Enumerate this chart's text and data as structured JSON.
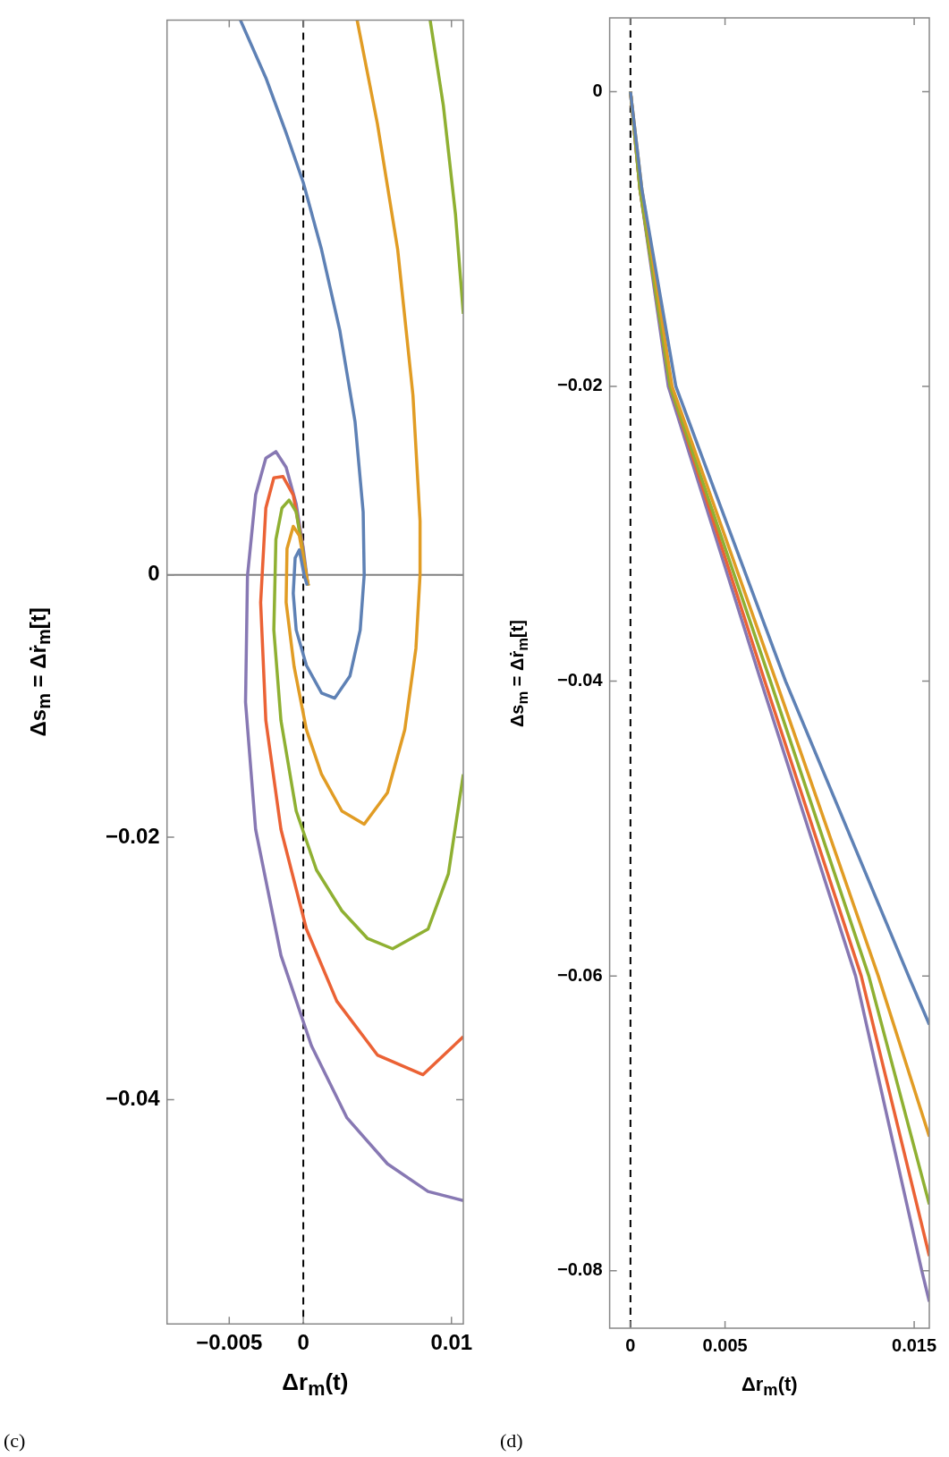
{
  "chart_data": [
    {
      "type": "line",
      "xlabel": "Δr$_{m}$(t)",
      "ylabel": "Δs$_{m}$ = Δṙ$_{m}$[t]",
      "annotations": [
        "(c)"
      ],
      "legend": false,
      "grid": false,
      "xlim": [
        -0.0092,
        0.0108
      ],
      "xticks": [
        {
          "value": -0.005,
          "label": "−0.005"
        },
        0,
        0.01
      ],
      "ylim": [
        -0.0571,
        0.0423
      ],
      "yticks": [
        {
          "value": -0.04,
          "label": "−0.04"
        },
        {
          "value": -0.02,
          "label": "−0.02"
        },
        0
      ],
      "ref_lines": [
        {
          "axis": "x",
          "value": 0,
          "color": "#000000",
          "line_style": "dashed"
        },
        {
          "axis": "y",
          "value": 0,
          "color": "#808080",
          "line_style": "solid"
        }
      ],
      "series": [
        {
          "color": "#5e81b5",
          "x": [
            -0.00425,
            -0.00253,
            -0.00116,
            0,
            0.00123,
            0.00247,
            0.00349,
            0.00404,
            0.00411,
            0.00384,
            0.00315,
            0.00212,
            0.00123,
            0.00021,
            -0.00048,
            -0.00068,
            -0.00055,
            -0.00027,
            7e-05,
            0.00027
          ],
          "values": [
            0.0423,
            0.0379,
            0.0337,
            0.0299,
            0.0248,
            0.0186,
            0.0117,
            0.0048,
            0,
            -0.0042,
            -0.0077,
            -0.0094,
            -0.009,
            -0.0069,
            -0.0042,
            -0.0014,
            0.0013,
            0.0019,
            -0.0001,
            -0.0008
          ]
        },
        {
          "color": "#e19c24",
          "x": [
            0.00363,
            0.005,
            0.00637,
            0.0074,
            0.00788,
            0.00788,
            0.0076,
            0.00685,
            0.00568,
            0.00411,
            0.0026,
            0.00123,
            0.00021,
            -0.00062,
            -0.00116,
            -0.0011,
            -0.00068,
            -0.00027,
            0,
            0.00021,
            0.00034
          ],
          "values": [
            0.0423,
            0.0344,
            0.0248,
            0.0137,
            0.0041,
            0,
            -0.0056,
            -0.0118,
            -0.0166,
            -0.019,
            -0.018,
            -0.0152,
            -0.0118,
            -0.007,
            -0.0021,
            0.002,
            0.0037,
            0.003,
            0.0013,
            -0.0001,
            -0.0008
          ]
        },
        {
          "color": "#8fb032",
          "x": [
            0.00856,
            0.00945,
            0.01027,
            0.0108
          ],
          "values": [
            0.0423,
            0.0358,
            0.0275,
            0.0199
          ]
        },
        {
          "color": "#8fb032",
          "x": [
            0.0108,
            0.00979,
            0.00842,
            0.00603,
            0.00432,
            0.0026,
            0.00089,
            -0.00048,
            -0.00151,
            -0.00199,
            -0.00185,
            -0.00144,
            -0.00096,
            -0.00048,
            -7e-05,
            0.00021,
            0.00034
          ],
          "values": [
            -0.0152,
            -0.0228,
            -0.027,
            -0.0285,
            -0.0277,
            -0.0256,
            -0.0225,
            -0.018,
            -0.0111,
            -0.0042,
            0.0027,
            0.0051,
            0.0057,
            0.0048,
            0.002,
            -0.0001,
            -0.0008
          ]
        },
        {
          "color": "#eb6235",
          "x": [
            0.0108,
            0.00808,
            0.005,
            0.00226,
            0.00021,
            -0.00151,
            -0.00253,
            -0.00288,
            -0.00253,
            -0.00199,
            -0.00137,
            -0.00068,
            -0.00014,
            0.00021,
            0.00034
          ],
          "values": [
            -0.0352,
            -0.0381,
            -0.0366,
            -0.0325,
            -0.027,
            -0.0194,
            -0.0111,
            -0.0021,
            0.0051,
            0.0074,
            0.0075,
            0.0061,
            0.0027,
            -0.0001,
            -0.0008
          ]
        },
        {
          "color": "#8778b3",
          "x": [
            0.0108,
            0.00842,
            0.00568,
            0.00295,
            0.00055,
            -0.00151,
            -0.00322,
            -0.0039,
            -0.00377,
            -0.00322,
            -0.00253,
            -0.00185,
            -0.00116,
            -0.00048,
            0,
            0.00027
          ],
          "values": [
            -0.0477,
            -0.047,
            -0.0449,
            -0.0414,
            -0.0359,
            -0.029,
            -0.0194,
            -0.0097,
            -0.0001,
            0.0061,
            0.0089,
            0.0094,
            0.0082,
            0.0054,
            0.002,
            -0.0004
          ]
        }
      ]
    },
    {
      "type": "line",
      "xlabel": "Δr$_{m}$(t)",
      "ylabel": "Δs$_{m}$ = Δṙ$_{m}$[t]",
      "annotations": [
        "(d)"
      ],
      "legend": false,
      "grid": false,
      "xlim": [
        -0.0011,
        0.0158
      ],
      "xticks": [
        0,
        0.005,
        0.015
      ],
      "ylim": [
        -0.0839,
        0.005
      ],
      "yticks": [
        {
          "value": -0.08,
          "label": "−0.08"
        },
        {
          "value": -0.06,
          "label": "−0.06"
        },
        {
          "value": -0.04,
          "label": "−0.04"
        },
        {
          "value": -0.02,
          "label": "−0.02"
        },
        0
      ],
      "ref_lines": [
        {
          "axis": "x",
          "value": 0,
          "color": "#000000",
          "line_style": "dashed"
        }
      ],
      "series": [
        {
          "color": "#5e81b5",
          "x": [
            0,
            0.0006,
            0.0024,
            0.0082,
            0.0147,
            0.0158
          ],
          "values": [
            0,
            -0.0066,
            -0.02,
            -0.04,
            -0.06,
            -0.0633
          ]
        },
        {
          "color": "#e19c24",
          "x": [
            0,
            0.0006,
            0.0022,
            0.0077,
            0.0131,
            0.0158
          ],
          "values": [
            0,
            -0.0066,
            -0.02,
            -0.04,
            -0.06,
            -0.0709
          ]
        },
        {
          "color": "#8fb032",
          "x": [
            0,
            0.0005,
            0.0021,
            0.0074,
            0.0126,
            0.0158
          ],
          "values": [
            0,
            -0.0066,
            -0.02,
            -0.04,
            -0.06,
            -0.0755
          ]
        },
        {
          "color": "#eb6235",
          "x": [
            0,
            0.0005,
            0.0021,
            0.0071,
            0.0122,
            0.0158
          ],
          "values": [
            0,
            -0.0066,
            -0.02,
            -0.04,
            -0.06,
            -0.079
          ]
        },
        {
          "color": "#8778b3",
          "x": [
            0,
            0.0005,
            0.002,
            0.0069,
            0.0119,
            0.0154,
            0.0158
          ],
          "values": [
            0,
            -0.0066,
            -0.02,
            -0.04,
            -0.06,
            -0.08,
            -0.0821
          ]
        }
      ]
    }
  ]
}
